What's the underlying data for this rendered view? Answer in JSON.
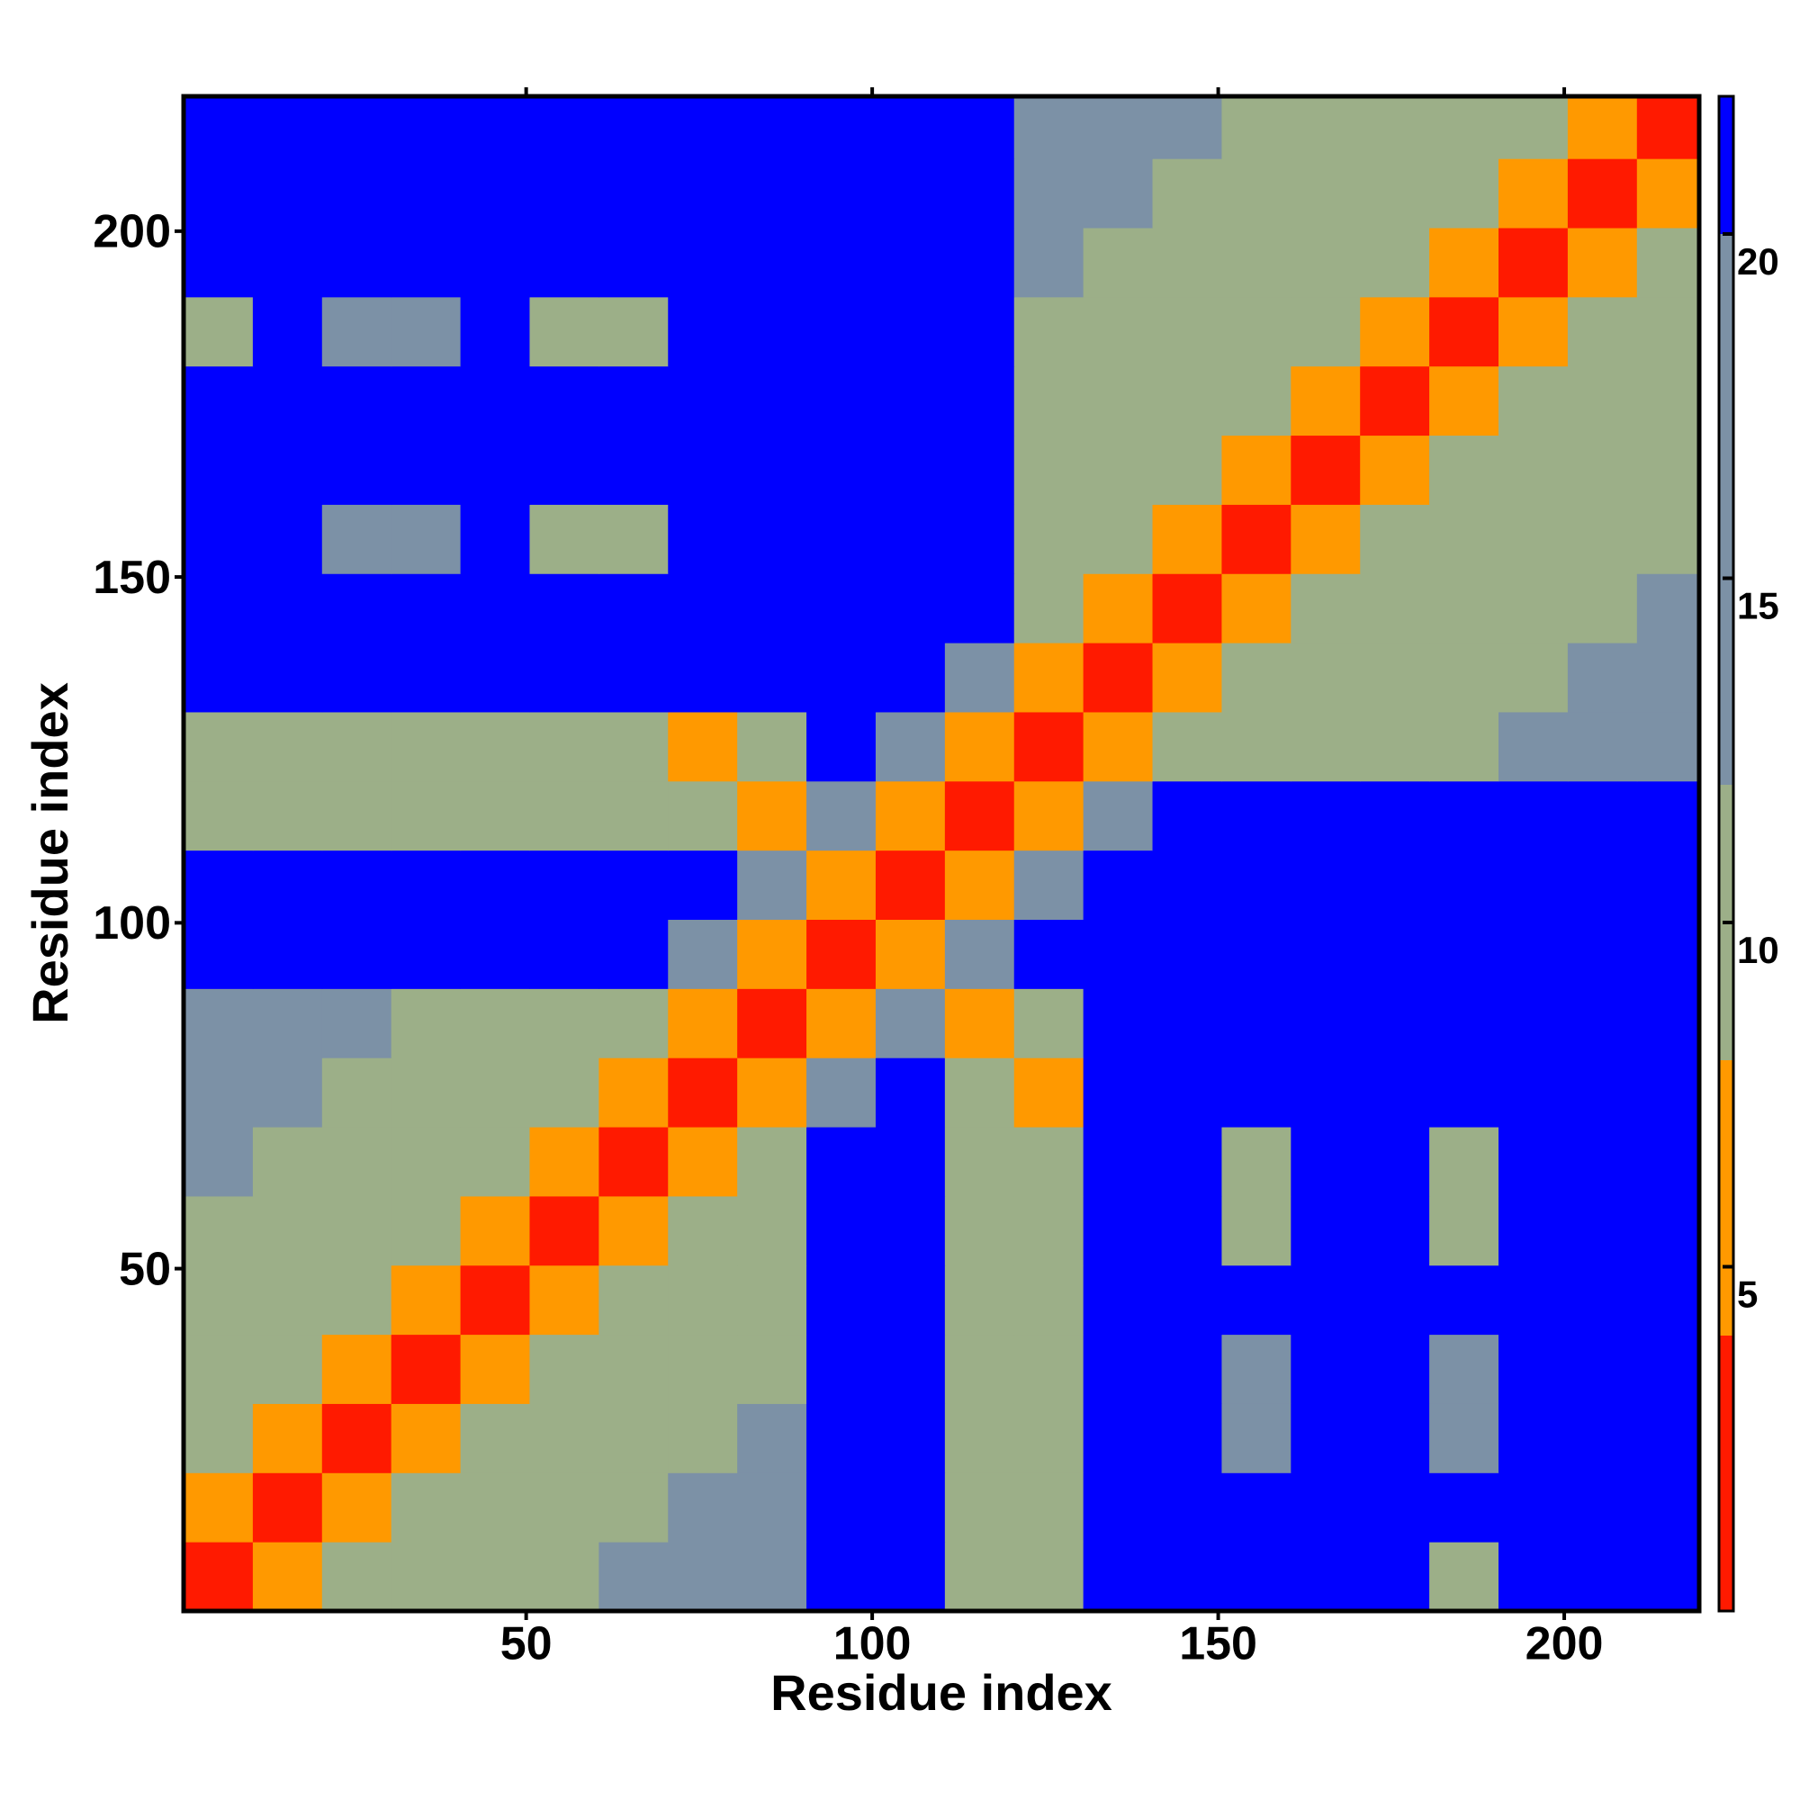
{
  "chart_data": {
    "type": "heatmap",
    "x_label": "Residue index",
    "y_label": "Residue index",
    "bins": [
      0.5,
      10.5,
      20.5,
      30.5,
      40.5,
      50.5,
      60.5,
      70.5,
      80.5,
      90.5,
      100.5,
      110.5,
      120.5,
      130.5,
      140.5,
      150.5,
      160.5,
      170.5,
      180.5,
      190.5,
      200.5,
      210.5,
      219.5
    ],
    "xlim": [
      0.5,
      219.5
    ],
    "ylim": [
      0.5,
      219.5
    ],
    "xticks": [
      50,
      100,
      150,
      200
    ],
    "yticks": [
      50,
      100,
      150,
      200
    ],
    "clim": [
      0,
      22
    ],
    "cticks": [
      5,
      10,
      15,
      20
    ],
    "color_breaks": [
      0,
      4,
      8,
      12,
      20,
      22
    ],
    "colors": [
      "#ff1a00",
      "#ff9900",
      "#9caf88",
      "#7c91a6",
      "#0000ff"
    ],
    "values": [
      [
        2,
        6,
        10,
        10,
        10,
        10,
        15,
        15,
        15,
        22,
        22,
        10,
        10,
        22,
        22,
        22,
        22,
        22,
        10,
        22,
        22,
        22
      ],
      [
        6,
        2,
        6,
        10,
        10,
        10,
        10,
        15,
        15,
        22,
        22,
        10,
        10,
        22,
        22,
        22,
        22,
        22,
        22,
        22,
        22,
        22
      ],
      [
        10,
        6,
        2,
        6,
        10,
        10,
        10,
        10,
        15,
        22,
        22,
        10,
        10,
        22,
        22,
        15,
        22,
        22,
        15,
        22,
        22,
        22
      ],
      [
        10,
        10,
        6,
        2,
        6,
        10,
        10,
        10,
        10,
        22,
        22,
        10,
        10,
        22,
        22,
        15,
        22,
        22,
        15,
        22,
        22,
        22
      ],
      [
        10,
        10,
        10,
        6,
        2,
        6,
        10,
        10,
        10,
        22,
        22,
        10,
        10,
        22,
        22,
        22,
        22,
        22,
        22,
        22,
        22,
        22
      ],
      [
        10,
        10,
        10,
        10,
        6,
        2,
        6,
        10,
        10,
        22,
        22,
        10,
        10,
        22,
        22,
        10,
        22,
        22,
        10,
        22,
        22,
        22
      ],
      [
        15,
        10,
        10,
        10,
        10,
        6,
        2,
        6,
        10,
        22,
        22,
        10,
        10,
        22,
        22,
        10,
        22,
        22,
        10,
        22,
        22,
        22
      ],
      [
        15,
        15,
        10,
        10,
        10,
        10,
        6,
        2,
        6,
        15,
        22,
        10,
        6,
        22,
        22,
        22,
        22,
        22,
        22,
        22,
        22,
        22
      ],
      [
        15,
        15,
        15,
        10,
        10,
        10,
        10,
        6,
        2,
        6,
        15,
        6,
        10,
        22,
        22,
        22,
        22,
        22,
        22,
        22,
        22,
        22
      ],
      [
        22,
        22,
        22,
        22,
        22,
        22,
        22,
        15,
        6,
        2,
        6,
        15,
        22,
        22,
        22,
        22,
        22,
        22,
        22,
        22,
        22,
        22
      ],
      [
        22,
        22,
        22,
        22,
        22,
        22,
        22,
        22,
        15,
        6,
        2,
        6,
        15,
        22,
        22,
        22,
        22,
        22,
        22,
        22,
        22,
        22
      ],
      [
        10,
        10,
        10,
        10,
        10,
        10,
        10,
        10,
        6,
        15,
        6,
        2,
        6,
        15,
        22,
        22,
        22,
        22,
        22,
        22,
        22,
        22
      ],
      [
        10,
        10,
        10,
        10,
        10,
        10,
        10,
        6,
        10,
        22,
        15,
        6,
        2,
        6,
        10,
        10,
        10,
        10,
        10,
        15,
        15,
        15
      ],
      [
        22,
        22,
        22,
        22,
        22,
        22,
        22,
        22,
        22,
        22,
        22,
        15,
        6,
        2,
        6,
        10,
        10,
        10,
        10,
        10,
        15,
        15
      ],
      [
        22,
        22,
        22,
        22,
        22,
        22,
        22,
        22,
        22,
        22,
        22,
        22,
        10,
        6,
        2,
        6,
        10,
        10,
        10,
        10,
        10,
        15
      ],
      [
        22,
        22,
        15,
        15,
        22,
        10,
        10,
        22,
        22,
        22,
        22,
        22,
        10,
        10,
        6,
        2,
        6,
        10,
        10,
        10,
        10,
        10
      ],
      [
        22,
        22,
        22,
        22,
        22,
        22,
        22,
        22,
        22,
        22,
        22,
        22,
        10,
        10,
        10,
        6,
        2,
        6,
        10,
        10,
        10,
        10
      ],
      [
        22,
        22,
        22,
        22,
        22,
        22,
        22,
        22,
        22,
        22,
        22,
        22,
        10,
        10,
        10,
        10,
        6,
        2,
        6,
        10,
        10,
        10
      ],
      [
        10,
        22,
        15,
        15,
        22,
        10,
        10,
        22,
        22,
        22,
        22,
        22,
        10,
        10,
        10,
        10,
        10,
        6,
        2,
        6,
        10,
        10
      ],
      [
        22,
        22,
        22,
        22,
        22,
        22,
        22,
        22,
        22,
        22,
        22,
        22,
        15,
        10,
        10,
        10,
        10,
        10,
        6,
        2,
        6,
        10
      ],
      [
        22,
        22,
        22,
        22,
        22,
        22,
        22,
        22,
        22,
        22,
        22,
        22,
        15,
        15,
        10,
        10,
        10,
        10,
        10,
        6,
        2,
        6
      ],
      [
        22,
        22,
        22,
        22,
        22,
        22,
        22,
        22,
        22,
        22,
        22,
        22,
        15,
        15,
        15,
        10,
        10,
        10,
        10,
        10,
        6,
        2
      ]
    ]
  }
}
